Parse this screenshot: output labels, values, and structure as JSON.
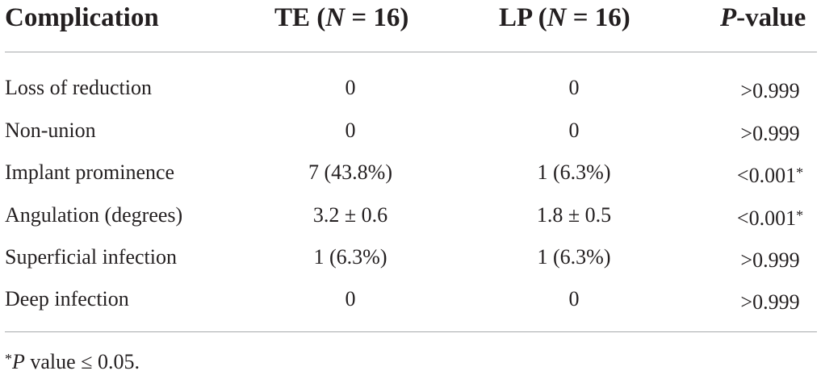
{
  "header": {
    "col_label": "Complication",
    "col_te_prefix": "TE (",
    "col_te_n": "N",
    "col_te_suffix": " = 16)",
    "col_lp_prefix": "LP (",
    "col_lp_n": "N",
    "col_lp_suffix": " = 16)",
    "col_p_italic": "P",
    "col_p_suffix": "-value"
  },
  "rows": [
    {
      "label": "Loss of reduction",
      "te": "0",
      "lp": "0",
      "p": ">0.999",
      "sig": ""
    },
    {
      "label": "Non-union",
      "te": "0",
      "lp": "0",
      "p": ">0.999",
      "sig": ""
    },
    {
      "label": "Implant prominence",
      "te": "7 (43.8%)",
      "lp": "1 (6.3%)",
      "p": "<0.001",
      "sig": "*"
    },
    {
      "label": "Angulation (degrees)",
      "te": "3.2 ± 0.6",
      "lp": "1.8 ± 0.5",
      "p": "<0.001",
      "sig": "*"
    },
    {
      "label": "Superficial infection",
      "te": "1 (6.3%)",
      "lp": "1 (6.3%)",
      "p": ">0.999",
      "sig": ""
    },
    {
      "label": "Deep infection",
      "te": "0",
      "lp": "0",
      "p": ">0.999",
      "sig": ""
    }
  ],
  "footnote": {
    "marker": "*",
    "italic": "P",
    "text": " value ≤ 0.05."
  }
}
